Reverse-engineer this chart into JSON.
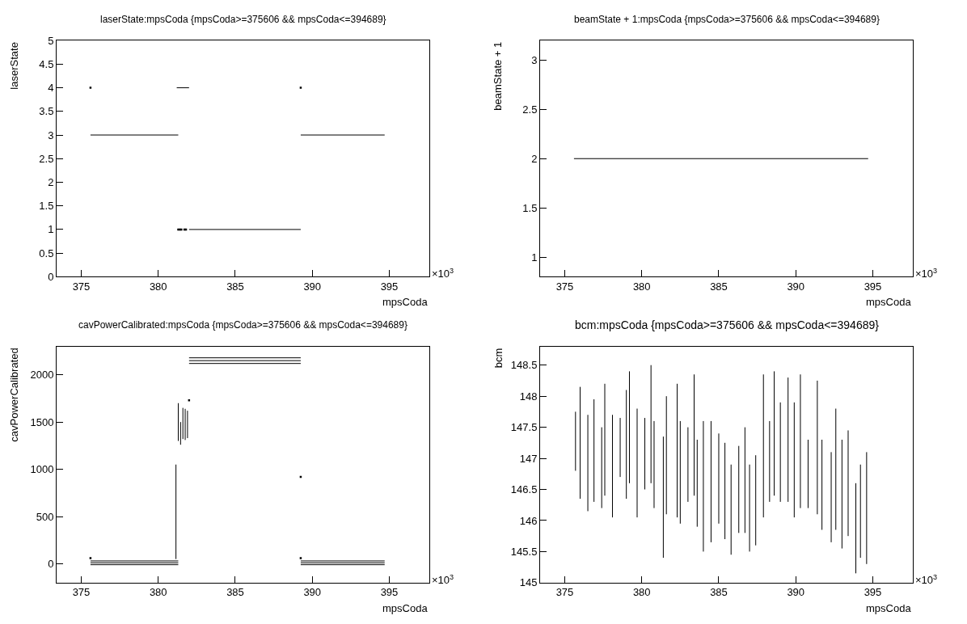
{
  "chart_data": [
    {
      "type": "scatter",
      "title": "laserState:mpsCoda {mpsCoda>=375606 && mpsCoda<=394689}",
      "xlabel": "mpsCoda",
      "ylabel": "laserState",
      "annotations": [
        "×10$^{3}$"
      ],
      "grid": false,
      "xlim": [
        373.4,
        397.6
      ],
      "xticks": [
        375,
        380,
        385,
        390,
        395
      ],
      "ylim": [
        0,
        5
      ],
      "yticks": [
        0,
        0.5,
        1,
        1.5,
        2,
        2.5,
        3,
        3.5,
        4,
        4.5,
        5
      ],
      "series": [
        {
          "type": "line",
          "color": "#000000",
          "x": [
            375.6,
            381.3
          ],
          "values": [
            3,
            3
          ]
        },
        {
          "type": "line",
          "color": "#000000",
          "x": [
            381.2,
            382.0
          ],
          "values": [
            4,
            4
          ]
        },
        {
          "color": "#000000",
          "x": [
            381.3,
            381.4,
            381.5,
            381.7,
            381.8
          ],
          "values": [
            1,
            1,
            1,
            1,
            1
          ]
        },
        {
          "type": "line",
          "color": "#000000",
          "x": [
            382.0,
            389.25
          ],
          "values": [
            1,
            1
          ]
        },
        {
          "type": "line",
          "color": "#000000",
          "x": [
            389.25,
            394.7
          ],
          "values": [
            3,
            3
          ]
        },
        {
          "color": "#000000",
          "x": [
            375.6,
            389.25
          ],
          "values": [
            4,
            4
          ]
        }
      ]
    },
    {
      "type": "scatter",
      "title": "beamState + 1:mpsCoda {mpsCoda>=375606 && mpsCoda<=394689}",
      "xlabel": "mpsCoda",
      "ylabel": "beamState + 1",
      "annotations": [
        "×10$^{3}$"
      ],
      "grid": false,
      "xlim": [
        373.4,
        397.6
      ],
      "xticks": [
        375,
        380,
        385,
        390,
        395
      ],
      "ylim": [
        0.8,
        3.2
      ],
      "yticks": [
        1,
        1.5,
        2,
        2.5,
        3
      ],
      "series": [
        {
          "type": "line",
          "color": "#000000",
          "x": [
            375.6,
            394.7
          ],
          "values": [
            2,
            2
          ]
        }
      ]
    },
    {
      "type": "scatter",
      "title": "cavPowerCalibrated:mpsCoda {mpsCoda>=375606 && mpsCoda<=394689}",
      "xlabel": "mpsCoda",
      "ylabel": "cavPowerCalibrated",
      "annotations": [
        "×10$^{3}$"
      ],
      "grid": false,
      "xlim": [
        373.4,
        397.6
      ],
      "xticks": [
        375,
        380,
        385,
        390,
        395
      ],
      "ylim": [
        -200,
        2300
      ],
      "yticks": [
        0,
        500,
        1000,
        1500,
        2000
      ],
      "series": [
        {
          "type": "line",
          "color": "#000000",
          "x": [
            375.6,
            381.3
          ],
          "values": [
            30,
            30
          ]
        },
        {
          "type": "line",
          "color": "#000000",
          "x": [
            375.6,
            381.3
          ],
          "values": [
            10,
            10
          ]
        },
        {
          "type": "line",
          "color": "#000000",
          "x": [
            375.6,
            381.3
          ],
          "values": [
            -10,
            -10
          ]
        },
        {
          "type": "line",
          "color": "#000000",
          "x": [
            389.25,
            394.7
          ],
          "values": [
            30,
            30
          ]
        },
        {
          "type": "line",
          "color": "#000000",
          "x": [
            389.25,
            394.7
          ],
          "values": [
            10,
            10
          ]
        },
        {
          "type": "line",
          "color": "#000000",
          "x": [
            389.25,
            394.7
          ],
          "values": [
            -10,
            -10
          ]
        },
        {
          "type": "line",
          "color": "#000000",
          "x": [
            382.0,
            389.25
          ],
          "values": [
            2180,
            2180
          ]
        },
        {
          "type": "line",
          "color": "#000000",
          "x": [
            382.0,
            389.25
          ],
          "values": [
            2150,
            2150
          ]
        },
        {
          "type": "line",
          "color": "#000000",
          "x": [
            382.0,
            389.25
          ],
          "values": [
            2120,
            2120
          ]
        },
        {
          "type": "line",
          "color": "#000000",
          "x": [
            381.15,
            381.15
          ],
          "values": [
            50,
            1050
          ]
        },
        {
          "type": "line",
          "color": "#000000",
          "x": [
            381.3,
            381.3
          ],
          "values": [
            1300,
            1700
          ]
        },
        {
          "type": "line",
          "color": "#000000",
          "x": [
            381.45,
            381.45
          ],
          "values": [
            1260,
            1500
          ]
        },
        {
          "type": "line",
          "color": "#000000",
          "x": [
            381.6,
            381.6
          ],
          "values": [
            1320,
            1650
          ]
        },
        {
          "type": "line",
          "color": "#000000",
          "x": [
            381.75,
            381.75
          ],
          "values": [
            1310,
            1640
          ]
        },
        {
          "type": "line",
          "color": "#000000",
          "x": [
            381.9,
            381.9
          ],
          "values": [
            1330,
            1620
          ]
        },
        {
          "color": "#000000",
          "x": [
            375.6,
            389.25,
            382.0,
            389.25
          ],
          "values": [
            60,
            60,
            1730,
            920
          ]
        }
      ]
    },
    {
      "type": "scatter",
      "title": "bcm:mpsCoda {mpsCoda>=375606 && mpsCoda<=394689}",
      "xlabel": "mpsCoda",
      "ylabel": "bcm",
      "annotations": [
        "×10$^{3}$"
      ],
      "grid": false,
      "xlim": [
        373.4,
        397.6
      ],
      "xticks": [
        375,
        380,
        385,
        390,
        395
      ],
      "ylim": [
        145,
        148.8
      ],
      "yticks": [
        145,
        145.5,
        146,
        146.5,
        147,
        147.5,
        148,
        148.5
      ],
      "series": [
        {
          "type": "line",
          "color": "#000000",
          "x": [
            375.7,
            375.7
          ],
          "values": [
            146.8,
            147.75
          ]
        },
        {
          "type": "line",
          "color": "#000000",
          "x": [
            376.0,
            376.0
          ],
          "values": [
            146.35,
            148.15
          ]
        },
        {
          "type": "line",
          "color": "#000000",
          "x": [
            376.5,
            376.5
          ],
          "values": [
            146.15,
            147.7
          ]
        },
        {
          "type": "line",
          "color": "#000000",
          "x": [
            376.9,
            376.9
          ],
          "values": [
            146.3,
            147.95
          ]
        },
        {
          "type": "line",
          "color": "#000000",
          "x": [
            377.4,
            377.4
          ],
          "values": [
            146.2,
            147.5
          ]
        },
        {
          "type": "line",
          "color": "#000000",
          "x": [
            377.6,
            377.6
          ],
          "values": [
            146.4,
            148.2
          ]
        },
        {
          "type": "line",
          "color": "#000000",
          "x": [
            378.1,
            378.1
          ],
          "values": [
            146.05,
            147.7
          ]
        },
        {
          "type": "line",
          "color": "#000000",
          "x": [
            378.6,
            378.6
          ],
          "values": [
            146.7,
            147.65
          ]
        },
        {
          "type": "line",
          "color": "#000000",
          "x": [
            379.0,
            379.0
          ],
          "values": [
            146.35,
            148.1
          ]
        },
        {
          "type": "line",
          "color": "#000000",
          "x": [
            379.2,
            379.2
          ],
          "values": [
            146.6,
            148.4
          ]
        },
        {
          "type": "line",
          "color": "#000000",
          "x": [
            379.7,
            379.7
          ],
          "values": [
            146.05,
            147.8
          ]
        },
        {
          "type": "line",
          "color": "#000000",
          "x": [
            380.2,
            380.2
          ],
          "values": [
            146.5,
            147.65
          ]
        },
        {
          "type": "line",
          "color": "#000000",
          "x": [
            380.6,
            380.6
          ],
          "values": [
            146.6,
            148.5
          ]
        },
        {
          "type": "line",
          "color": "#000000",
          "x": [
            380.8,
            380.8
          ],
          "values": [
            146.2,
            147.6
          ]
        },
        {
          "type": "line",
          "color": "#000000",
          "x": [
            381.4,
            381.4
          ],
          "values": [
            145.4,
            147.35
          ]
        },
        {
          "type": "line",
          "color": "#000000",
          "x": [
            381.6,
            381.6
          ],
          "values": [
            146.1,
            148.0
          ]
        },
        {
          "type": "line",
          "color": "#000000",
          "x": [
            382.3,
            382.3
          ],
          "values": [
            146.05,
            148.2
          ]
        },
        {
          "type": "line",
          "color": "#000000",
          "x": [
            382.5,
            382.5
          ],
          "values": [
            145.95,
            147.6
          ]
        },
        {
          "type": "line",
          "color": "#000000",
          "x": [
            383.0,
            383.0
          ],
          "values": [
            146.3,
            147.5
          ]
        },
        {
          "type": "line",
          "color": "#000000",
          "x": [
            383.4,
            383.4
          ],
          "values": [
            146.4,
            148.35
          ]
        },
        {
          "type": "line",
          "color": "#000000",
          "x": [
            383.6,
            383.6
          ],
          "values": [
            145.9,
            147.3
          ]
        },
        {
          "type": "line",
          "color": "#000000",
          "x": [
            384.0,
            384.0
          ],
          "values": [
            145.5,
            147.6
          ]
        },
        {
          "type": "line",
          "color": "#000000",
          "x": [
            384.5,
            384.5
          ],
          "values": [
            145.65,
            147.6
          ]
        },
        {
          "type": "line",
          "color": "#000000",
          "x": [
            385.0,
            385.0
          ],
          "values": [
            145.95,
            147.4
          ]
        },
        {
          "type": "line",
          "color": "#000000",
          "x": [
            385.4,
            385.4
          ],
          "values": [
            145.7,
            147.25
          ]
        },
        {
          "type": "line",
          "color": "#000000",
          "x": [
            385.8,
            385.8
          ],
          "values": [
            145.45,
            146.9
          ]
        },
        {
          "type": "line",
          "color": "#000000",
          "x": [
            386.3,
            386.3
          ],
          "values": [
            145.8,
            147.2
          ]
        },
        {
          "type": "line",
          "color": "#000000",
          "x": [
            386.7,
            386.7
          ],
          "values": [
            145.8,
            147.5
          ]
        },
        {
          "type": "line",
          "color": "#000000",
          "x": [
            387.0,
            387.0
          ],
          "values": [
            145.5,
            146.9
          ]
        },
        {
          "type": "line",
          "color": "#000000",
          "x": [
            387.4,
            387.4
          ],
          "values": [
            145.6,
            147.05
          ]
        },
        {
          "type": "line",
          "color": "#000000",
          "x": [
            387.9,
            387.9
          ],
          "values": [
            146.05,
            148.35
          ]
        },
        {
          "type": "line",
          "color": "#000000",
          "x": [
            388.3,
            388.3
          ],
          "values": [
            146.3,
            147.6
          ]
        },
        {
          "type": "line",
          "color": "#000000",
          "x": [
            388.6,
            388.6
          ],
          "values": [
            146.4,
            148.4
          ]
        },
        {
          "type": "line",
          "color": "#000000",
          "x": [
            389.0,
            389.0
          ],
          "values": [
            146.3,
            147.9
          ]
        },
        {
          "type": "line",
          "color": "#000000",
          "x": [
            389.5,
            389.5
          ],
          "values": [
            146.3,
            148.3
          ]
        },
        {
          "type": "line",
          "color": "#000000",
          "x": [
            389.9,
            389.9
          ],
          "values": [
            146.05,
            147.9
          ]
        },
        {
          "type": "line",
          "color": "#000000",
          "x": [
            390.3,
            390.3
          ],
          "values": [
            146.2,
            148.35
          ]
        },
        {
          "type": "line",
          "color": "#000000",
          "x": [
            390.8,
            390.8
          ],
          "values": [
            146.2,
            147.3
          ]
        },
        {
          "type": "line",
          "color": "#000000",
          "x": [
            391.4,
            391.4
          ],
          "values": [
            146.1,
            148.25
          ]
        },
        {
          "type": "line",
          "color": "#000000",
          "x": [
            391.7,
            391.7
          ],
          "values": [
            145.85,
            147.3
          ]
        },
        {
          "type": "line",
          "color": "#000000",
          "x": [
            392.3,
            392.3
          ],
          "values": [
            145.65,
            147.1
          ]
        },
        {
          "type": "line",
          "color": "#000000",
          "x": [
            392.6,
            392.6
          ],
          "values": [
            145.85,
            147.8
          ]
        },
        {
          "type": "line",
          "color": "#000000",
          "x": [
            393.0,
            393.0
          ],
          "values": [
            145.55,
            147.3
          ]
        },
        {
          "type": "line",
          "color": "#000000",
          "x": [
            393.4,
            393.4
          ],
          "values": [
            145.75,
            147.45
          ]
        },
        {
          "type": "line",
          "color": "#000000",
          "x": [
            393.9,
            393.9
          ],
          "values": [
            145.15,
            146.6
          ]
        },
        {
          "type": "line",
          "color": "#000000",
          "x": [
            394.2,
            394.2
          ],
          "values": [
            145.4,
            146.9
          ]
        },
        {
          "type": "line",
          "color": "#000000",
          "x": [
            394.6,
            394.6
          ],
          "values": [
            145.3,
            147.1
          ]
        }
      ]
    }
  ]
}
